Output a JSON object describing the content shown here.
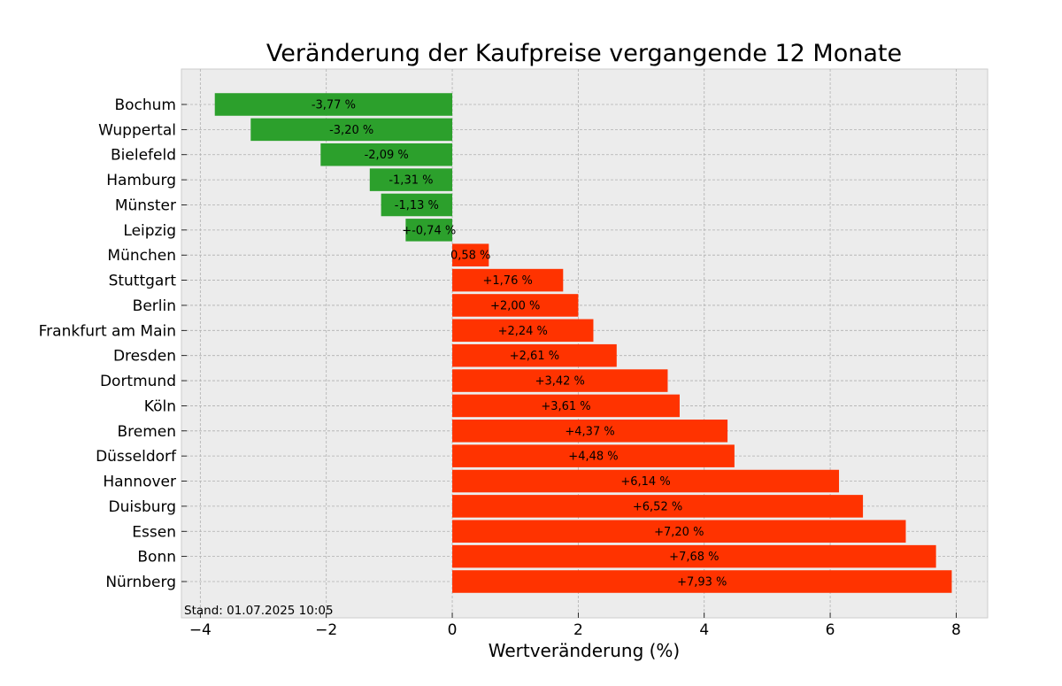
{
  "chart_data": {
    "type": "bar",
    "orientation": "horizontal",
    "title": "Veränderung der Kaufpreise vergangende 12 Monate",
    "xlabel": "Wertveränderung (%)",
    "ylabel": "",
    "xlim": [
      -4.3,
      8.5
    ],
    "xticks": [
      -4,
      -2,
      0,
      2,
      4,
      6,
      8
    ],
    "xtick_labels": [
      "−4",
      "−2",
      "0",
      "2",
      "4",
      "6",
      "8"
    ],
    "grid": true,
    "categories": [
      "Bochum",
      "Wuppertal",
      "Bielefeld",
      "Hamburg",
      "Münster",
      "Leipzig",
      "München",
      "Stuttgart",
      "Berlin",
      "Frankfurt am Main",
      "Dresden",
      "Dortmund",
      "Köln",
      "Bremen",
      "Düsseldorf",
      "Hannover",
      "Duisburg",
      "Essen",
      "Bonn",
      "Nürnberg"
    ],
    "values": [
      -3.77,
      -3.2,
      -2.09,
      -1.31,
      -1.13,
      -0.74,
      0.58,
      1.76,
      2.0,
      2.24,
      2.61,
      3.42,
      3.61,
      4.37,
      4.48,
      6.14,
      6.52,
      7.2,
      7.68,
      7.93
    ],
    "value_labels": [
      "-3,77 %",
      "-3,20 %",
      "-2,09 %",
      "-1,31 %",
      "-1,13 %",
      "+-0,74 %",
      "0,58 %",
      "+1,76 %",
      "+2,00 %",
      "+2,24 %",
      "+2,61 %",
      "+3,42 %",
      "+3,61 %",
      "+4,37 %",
      "+4,48 %",
      "+6,14 %",
      "+6,52 %",
      "+7,20 %",
      "+7,68 %",
      "+7,93 %"
    ],
    "colors": {
      "negative": "#2ca02c",
      "positive": "#ff3300",
      "background": "#ececec",
      "grid": "#b0b0b0"
    },
    "annotation": "Stand: 01.07.2025 10:05"
  }
}
